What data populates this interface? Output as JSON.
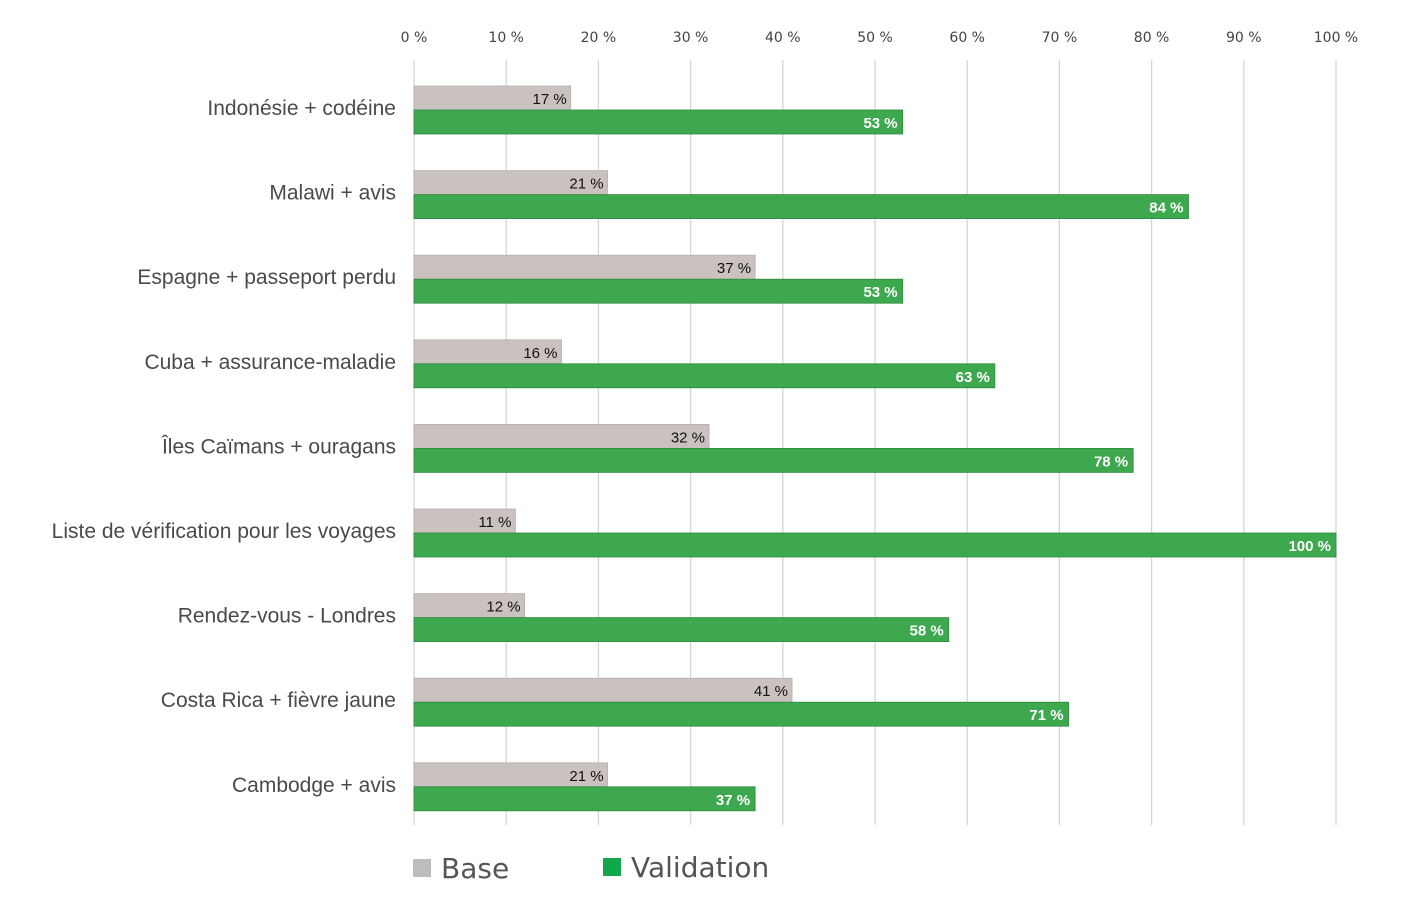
{
  "chart_data": {
    "type": "bar",
    "orientation": "horizontal",
    "categories": [
      "Indonésie + codéine",
      "Malawi + avis",
      "Espagne + passeport perdu",
      "Cuba + assurance-maladie",
      "Îles Caïmans + ouragans",
      "Liste de vérification pour les voyages",
      "Rendez-vous - Londres",
      "Costa Rica + fièvre jaune",
      "Cambodge + avis"
    ],
    "series": [
      {
        "name": "Base",
        "color": "#c9c2be",
        "values": [
          17,
          21,
          37,
          16,
          32,
          11,
          12,
          41,
          21
        ],
        "labels": [
          "17 %",
          "21 %",
          "37 %",
          "16 %",
          "32 %",
          "11 %",
          "12 %",
          "41 %",
          "21 %"
        ]
      },
      {
        "name": "Validation",
        "color": "#3da84e",
        "values": [
          53,
          84,
          53,
          63,
          78,
          100,
          58,
          71,
          37
        ],
        "labels": [
          "53 %",
          "84 %",
          "53 %",
          "63 %",
          "78 %",
          "100 %",
          "58 %",
          "71 %",
          "37 %"
        ]
      }
    ],
    "xlim": [
      0,
      100
    ],
    "xticks": [
      0,
      10,
      20,
      30,
      40,
      50,
      60,
      70,
      80,
      90,
      100
    ],
    "xtick_labels": [
      "0 %",
      "10 %",
      "20 %",
      "30 %",
      "40 %",
      "50 %",
      "60 %",
      "70 %",
      "80 %",
      "90 %",
      "100 %"
    ],
    "axis_position": "top",
    "grid": true,
    "legend": "bottom-left"
  },
  "legend_icon_colors": {
    "base": "#bdbdbd",
    "validation": "#11a84a"
  }
}
